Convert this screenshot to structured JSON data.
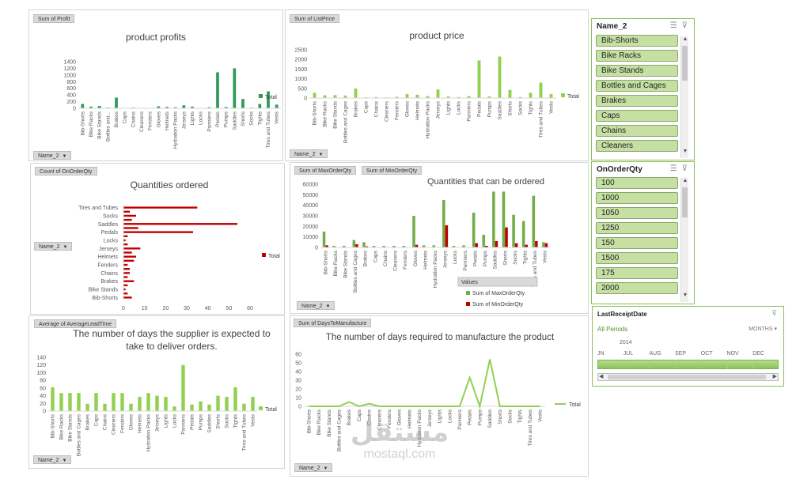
{
  "colors": {
    "green": "#2e9b5b",
    "lightgreen": "#92d050",
    "olive": "#70ad47",
    "red": "#c00000",
    "accent": "#8fbf5a"
  },
  "name_filter_label": "Name_2",
  "legend_total": "Total",
  "chart1": {
    "field_button": "Sum of Profit",
    "title": "product profits",
    "ylim": [
      0,
      1400
    ],
    "yticks": [
      "0",
      "200",
      "400",
      "600",
      "800",
      "1000",
      "1200",
      "1400"
    ],
    "chart_data": {
      "type": "bar",
      "categories": [
        "Bib-Shorts",
        "Bike Racks",
        "Bike Stands",
        "Bottles and...",
        "Brakes",
        "Caps",
        "Chains",
        "Cleaners",
        "Fenders",
        "Gloves",
        "Helmets",
        "Hydration Packs",
        "Jerseys",
        "Lights",
        "Locks",
        "Panniers",
        "Pedals",
        "Pumps",
        "Saddles",
        "Shorts",
        "Socks",
        "Tights",
        "Tires and Tubes",
        "Vests"
      ],
      "values": [
        130,
        50,
        70,
        20,
        320,
        10,
        20,
        5,
        10,
        60,
        40,
        30,
        90,
        50,
        10,
        30,
        1080,
        40,
        1200,
        280,
        20,
        130,
        510,
        110
      ]
    }
  },
  "chart2": {
    "field_button": "Sum of ListPrice",
    "title": "product price",
    "ylim": [
      0,
      2500
    ],
    "yticks": [
      "0",
      "500",
      "1000",
      "1500",
      "2000",
      "2500"
    ],
    "chart_data": {
      "type": "bar",
      "categories": [
        "Bib-Shorts",
        "Bike Racks",
        "Bike Stands",
        "Bottles and Cages",
        "Brakes",
        "Caps",
        "Chains",
        "Cleaners",
        "Fenders",
        "Gloves",
        "Helmets",
        "Hydration Packs",
        "Jerseys",
        "Lights",
        "Locks",
        "Panniers",
        "Pedals",
        "Pumps",
        "Saddles",
        "Shorts",
        "Socks",
        "Tights",
        "Tires and Tubes",
        "Vests"
      ],
      "values": [
        270,
        140,
        150,
        130,
        490,
        40,
        50,
        30,
        60,
        200,
        170,
        100,
        440,
        80,
        50,
        100,
        1950,
        80,
        2150,
        420,
        50,
        270,
        800,
        200
      ]
    }
  },
  "chart3": {
    "field_button": "Count of OnOrderQty",
    "title": "Quantities ordered",
    "xlim": [
      0,
      60
    ],
    "xticks": [
      "0",
      "10",
      "20",
      "30",
      "40",
      "50",
      "60"
    ],
    "chart_data": {
      "type": "bar",
      "orientation": "horizontal",
      "categories": [
        "Tires and Tubes",
        "",
        "Socks",
        "",
        "Saddles",
        "",
        "Pedals",
        "",
        "Locks",
        "",
        "Jerseys",
        "",
        "Helmets",
        "",
        "Fenders",
        "",
        "Chains",
        "",
        "Brakes",
        "",
        "Bike Stands",
        "",
        "Bib-Shorts"
      ],
      "values": [
        35,
        3,
        6,
        4,
        54,
        7,
        33,
        2,
        1,
        2,
        8,
        4,
        6,
        5,
        2,
        3,
        3,
        2,
        5,
        2,
        1,
        2,
        4
      ]
    }
  },
  "chart4": {
    "field_buttons": [
      "Sum of MaxOrderQty",
      "Sum of MinOrderQty"
    ],
    "title": "Quantities that can be ordered",
    "ylim": [
      0,
      60000
    ],
    "yticks": [
      "0",
      "10000",
      "20000",
      "30000",
      "40000",
      "50000",
      "60000"
    ],
    "legend_title": "Values",
    "chart_data": {
      "type": "bar",
      "categories": [
        "Bib-Shorts",
        "Bike Racks",
        "Bike Stands",
        "Bottles and Cages",
        "Brakes",
        "Caps",
        "Chains",
        "Cleaners",
        "Fenders",
        "Gloves",
        "Helmets",
        "Hydration Packs",
        "Jerseys",
        "Locks",
        "Panniers",
        "Pedals",
        "Pumps",
        "Saddles",
        "Shorts",
        "Socks",
        "Tights",
        "Tires and Tubes",
        "Vests"
      ],
      "series": [
        {
          "name": "Sum of MaxOrderQty",
          "values": [
            15000,
            1500,
            1500,
            7000,
            5000,
            1500,
            1500,
            1500,
            1500,
            30000,
            2000,
            2000,
            45000,
            1500,
            2000,
            33000,
            12000,
            53000,
            53000,
            31000,
            25000,
            49000,
            5000
          ]
        },
        {
          "name": "Sum of MinOrderQty",
          "values": [
            2000,
            200,
            200,
            3000,
            1000,
            200,
            200,
            200,
            200,
            2500,
            300,
            300,
            21000,
            200,
            300,
            4000,
            1500,
            6000,
            19000,
            4000,
            2500,
            6000,
            4000
          ]
        }
      ]
    }
  },
  "chart5": {
    "field_button": "Average of AverageLeadTime",
    "title_lines": [
      "The number of days the supplier is expected to",
      "take to deliver orders."
    ],
    "ylim": [
      0,
      140
    ],
    "yticks": [
      "0",
      "20",
      "40",
      "60",
      "80",
      "100",
      "120",
      "140"
    ],
    "chart_data": {
      "type": "bar",
      "categories": [
        "Bib-Shorts",
        "Bike Racks",
        "Bike Stands",
        "Bottles and Cages",
        "Brakes",
        "Caps",
        "Chains",
        "Cleaners",
        "Fenders",
        "Gloves",
        "Helmets",
        "Hydration Packs",
        "Jerseys",
        "Lights",
        "Locks",
        "Panniers",
        "Pedals",
        "Pumps",
        "Saddles",
        "Shorts",
        "Socks",
        "Tights",
        "Tires and Tubes",
        "Vests"
      ],
      "values": [
        62,
        47,
        47,
        47,
        19,
        47,
        19,
        47,
        47,
        19,
        37,
        47,
        40,
        37,
        12,
        120,
        17,
        25,
        17,
        40,
        37,
        62,
        19,
        37
      ]
    }
  },
  "chart6": {
    "field_button": "Sum of DaysToManufacture",
    "title": "The number of days required to manufacture the product",
    "ylim": [
      0,
      60
    ],
    "yticks": [
      "0",
      "10",
      "20",
      "30",
      "40",
      "50",
      "60"
    ],
    "chart_data": {
      "type": "line",
      "categories": [
        "Bib-Shorts",
        "Bike Racks",
        "Bike Stands",
        "Bottles and Cages",
        "Brakes",
        "Caps",
        "Chains",
        "Cleaners",
        "Fenders",
        "Gloves",
        "Helmets",
        "Hydration Packs",
        "Jerseys",
        "Lights",
        "Locks",
        "Panniers",
        "Pedals",
        "Pumps",
        "Saddles",
        "Shorts",
        "Socks",
        "Tights",
        "Tires and Tubes",
        "Vests"
      ],
      "values": [
        0,
        0,
        0,
        0,
        5,
        0,
        3,
        0,
        0,
        0,
        0,
        0,
        0,
        0,
        0,
        0,
        33,
        0,
        54,
        0,
        0,
        0,
        0,
        0
      ]
    }
  },
  "slicer_name": {
    "header": "Name_2",
    "items": [
      "Bib-Shorts",
      "Bike Racks",
      "Bike Stands",
      "Bottles and Cages",
      "Brakes",
      "Caps",
      "Chains",
      "Cleaners"
    ]
  },
  "slicer_qty": {
    "header": "OnOrderQty",
    "items": [
      "100",
      "1000",
      "1050",
      "1250",
      "150",
      "1500",
      "175",
      "2000"
    ]
  },
  "timeline": {
    "header": "LastReceiptDate",
    "all_periods": "All Periods",
    "level": "MONTHS",
    "year": "2014",
    "months": [
      "JN",
      "JUL",
      "AUG",
      "SEP",
      "OCT",
      "NOV",
      "DEC"
    ]
  },
  "watermark": {
    "arabic": "مستقل",
    "latin": "mostaql.com"
  }
}
